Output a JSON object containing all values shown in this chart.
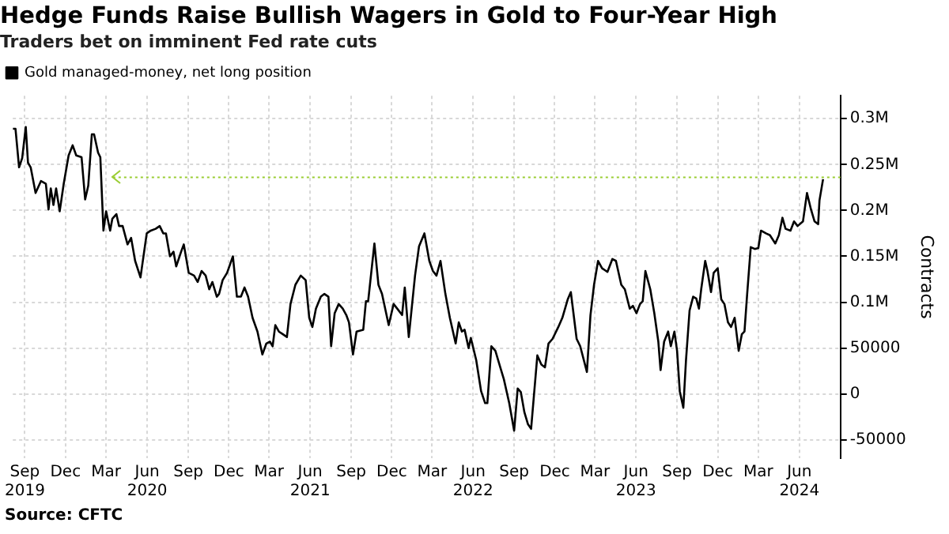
{
  "chart_data": {
    "type": "line",
    "title": "Hedge Funds Raise Bullish Wagers in Gold to Four-Year High",
    "subtitle": "Traders bet on imminent Fed rate cuts",
    "ylabel": "Contracts",
    "annotations": [
      "Source: CFTC"
    ],
    "x": [
      "2019-08-05",
      "2019-08-11",
      "2019-08-19",
      "2019-08-26",
      "2019-09-03",
      "2019-09-08",
      "2019-09-14",
      "2019-09-25",
      "2019-10-07",
      "2019-10-18",
      "2019-10-24",
      "2019-10-29",
      "2019-11-04",
      "2019-11-10",
      "2019-11-18",
      "2019-11-27",
      "2019-12-08",
      "2019-12-17",
      "2019-12-25",
      "2020-01-06",
      "2020-01-14",
      "2020-01-21",
      "2020-01-29",
      "2020-02-03",
      "2020-02-12",
      "2020-02-17",
      "2020-02-24",
      "2020-03-01",
      "2020-03-10",
      "2020-03-15",
      "2020-03-24",
      "2020-03-30",
      "2020-04-07",
      "2020-04-18",
      "2020-04-26",
      "2020-05-05",
      "2020-05-17",
      "2020-05-31",
      "2020-06-09",
      "2020-06-20",
      "2020-06-29",
      "2020-07-07",
      "2020-07-13",
      "2020-07-22",
      "2020-07-30",
      "2020-08-05",
      "2020-08-16",
      "2020-08-22",
      "2020-09-02",
      "2020-09-14",
      "2020-09-22",
      "2020-10-01",
      "2020-10-10",
      "2020-10-18",
      "2020-10-25",
      "2020-11-04",
      "2020-11-09",
      "2020-11-17",
      "2020-11-27",
      "2020-12-10",
      "2020-12-19",
      "2020-12-28",
      "2021-01-05",
      "2021-01-13",
      "2021-01-23",
      "2021-02-03",
      "2021-02-14",
      "2021-02-23",
      "2021-03-03",
      "2021-03-09",
      "2021-03-15",
      "2021-03-23",
      "2021-04-01",
      "2021-04-10",
      "2021-04-18",
      "2021-04-29",
      "2021-05-11",
      "2021-05-22",
      "2021-05-30",
      "2021-06-06",
      "2021-06-14",
      "2021-06-25",
      "2021-07-03",
      "2021-07-12",
      "2021-07-18",
      "2021-07-26",
      "2021-08-04",
      "2021-08-13",
      "2021-08-21",
      "2021-08-27",
      "2021-09-05",
      "2021-09-13",
      "2021-09-28",
      "2021-10-04",
      "2021-10-09",
      "2021-10-23",
      "2021-11-01",
      "2021-11-09",
      "2021-11-24",
      "2021-12-05",
      "2021-12-13",
      "2021-12-24",
      "2021-12-30",
      "2022-01-08",
      "2022-01-22",
      "2022-01-31",
      "2022-02-12",
      "2022-02-23",
      "2022-03-03",
      "2022-03-11",
      "2022-03-20",
      "2022-03-31",
      "2022-04-10",
      "2022-04-23",
      "2022-04-30",
      "2022-05-07",
      "2022-05-13",
      "2022-05-22",
      "2022-05-27",
      "2022-06-08",
      "2022-06-19",
      "2022-06-28",
      "2022-07-03",
      "2022-07-12",
      "2022-07-21",
      "2022-08-01",
      "2022-08-09",
      "2022-08-21",
      "2022-09-01",
      "2022-09-09",
      "2022-09-16",
      "2022-09-24",
      "2022-10-02",
      "2022-10-09",
      "2022-10-23",
      "2022-11-01",
      "2022-11-09",
      "2022-11-17",
      "2022-11-26",
      "2022-12-09",
      "2022-12-18",
      "2022-12-30",
      "2023-01-06",
      "2023-01-19",
      "2023-01-27",
      "2023-02-11",
      "2023-02-19",
      "2023-02-27",
      "2023-03-08",
      "2023-03-17",
      "2023-03-29",
      "2023-04-09",
      "2023-04-17",
      "2023-04-29",
      "2023-05-07",
      "2023-05-18",
      "2023-05-25",
      "2023-06-02",
      "2023-06-10",
      "2023-06-16",
      "2023-06-22",
      "2023-07-03",
      "2023-07-12",
      "2023-07-21",
      "2023-07-26",
      "2023-08-03",
      "2023-08-12",
      "2023-08-18",
      "2023-08-26",
      "2023-09-01",
      "2023-09-07",
      "2023-09-15",
      "2023-09-21",
      "2023-09-29",
      "2023-10-07",
      "2023-10-14",
      "2023-10-20",
      "2023-10-25",
      "2023-11-03",
      "2023-11-08",
      "2023-11-16",
      "2023-11-22",
      "2023-12-01",
      "2023-12-09",
      "2023-12-16",
      "2023-12-24",
      "2023-12-31",
      "2024-01-08",
      "2024-01-17",
      "2024-01-24",
      "2024-01-30",
      "2024-02-05",
      "2024-02-13",
      "2024-02-22",
      "2024-03-01",
      "2024-03-07",
      "2024-03-18",
      "2024-03-27",
      "2024-04-08",
      "2024-04-16",
      "2024-04-24",
      "2024-05-01",
      "2024-05-12",
      "2024-05-20",
      "2024-05-28",
      "2024-06-09",
      "2024-06-18",
      "2024-06-27",
      "2024-07-05",
      "2024-07-13",
      "2024-07-16",
      "2024-07-24"
    ],
    "series": [
      {
        "name": "Gold managed-money, net long position",
        "color": "#000000",
        "values": [
          289000,
          289000,
          247000,
          257000,
          291000,
          252000,
          247000,
          219000,
          232000,
          229000,
          201000,
          224000,
          206000,
          224000,
          199000,
          229000,
          260000,
          271000,
          260000,
          258000,
          212000,
          227000,
          283000,
          283000,
          263000,
          258000,
          178000,
          199000,
          178000,
          191000,
          196000,
          183000,
          183000,
          163000,
          170000,
          145000,
          127000,
          175000,
          178000,
          180000,
          183000,
          175000,
          175000,
          150000,
          155000,
          139000,
          155000,
          163000,
          132000,
          129000,
          122000,
          134000,
          129000,
          114000,
          122000,
          106000,
          109000,
          124000,
          132000,
          150000,
          106000,
          106000,
          116000,
          106000,
          83000,
          68000,
          43000,
          55000,
          57000,
          52000,
          75000,
          68000,
          65000,
          62000,
          98000,
          119000,
          129000,
          124000,
          83000,
          73000,
          93000,
          106000,
          109000,
          106000,
          52000,
          88000,
          98000,
          93000,
          86000,
          78000,
          43000,
          68000,
          70000,
          101000,
          101000,
          164000,
          119000,
          109000,
          75000,
          98000,
          93000,
          86000,
          116000,
          62000,
          129000,
          161000,
          175000,
          145000,
          134000,
          129000,
          145000,
          109000,
          83000,
          55000,
          78000,
          68000,
          70000,
          50000,
          61000,
          37000,
          3000,
          -10000,
          -10000,
          52000,
          47000,
          29000,
          16000,
          -10000,
          -40000,
          6000,
          2000,
          -20000,
          -33000,
          -38000,
          42000,
          32000,
          29000,
          55000,
          60000,
          73000,
          83000,
          103000,
          111000,
          60000,
          52000,
          24000,
          86000,
          119000,
          145000,
          137000,
          133000,
          147000,
          145000,
          119000,
          114000,
          93000,
          96000,
          88000,
          98000,
          101000,
          134000,
          114000,
          88000,
          57000,
          26000,
          57000,
          68000,
          52000,
          68000,
          47000,
          3000,
          -15000,
          37000,
          91000,
          106000,
          104000,
          93000,
          114000,
          145000,
          134000,
          111000,
          132000,
          137000,
          103000,
          98000,
          78000,
          73000,
          83000,
          47000,
          65000,
          68000,
          109000,
          160000,
          158000,
          159000,
          178000,
          175000,
          173000,
          164000,
          173000,
          192000,
          180000,
          178000,
          188000,
          183000,
          188000,
          219000,
          201000,
          188000,
          185000,
          211000,
          234000
        ]
      }
    ],
    "xlim": [
      "2019-08-05",
      "2024-09-01"
    ],
    "xticks": [
      {
        "value": "2019-09-01",
        "label": "Sep\n2019"
      },
      {
        "value": "2019-12-01",
        "label": "Dec"
      },
      {
        "value": "2020-03-01",
        "label": "Mar"
      },
      {
        "value": "2020-06-01",
        "label": "Jun\n2020"
      },
      {
        "value": "2020-09-01",
        "label": "Sep"
      },
      {
        "value": "2020-12-01",
        "label": "Dec"
      },
      {
        "value": "2021-03-01",
        "label": "Mar"
      },
      {
        "value": "2021-06-01",
        "label": "Jun\n2021"
      },
      {
        "value": "2021-09-01",
        "label": "Sep"
      },
      {
        "value": "2021-12-01",
        "label": "Dec"
      },
      {
        "value": "2022-03-01",
        "label": "Mar"
      },
      {
        "value": "2022-06-01",
        "label": "Jun\n2022"
      },
      {
        "value": "2022-09-01",
        "label": "Sep"
      },
      {
        "value": "2022-12-01",
        "label": "Dec"
      },
      {
        "value": "2023-03-01",
        "label": "Mar"
      },
      {
        "value": "2023-06-01",
        "label": "Jun\n2023"
      },
      {
        "value": "2023-09-01",
        "label": "Sep"
      },
      {
        "value": "2023-12-01",
        "label": "Dec"
      },
      {
        "value": "2024-03-01",
        "label": "Mar"
      },
      {
        "value": "2024-06-01",
        "label": "Jun\n2024"
      }
    ],
    "ylim": [
      -70000,
      325000
    ],
    "yticks": [
      -50000,
      0,
      50000,
      {
        "value": 100000,
        "label": "0.1M"
      },
      {
        "value": 150000,
        "label": "0.15M"
      },
      {
        "value": 200000,
        "label": "0.2M"
      },
      {
        "value": 250000,
        "label": "0.25M"
      },
      {
        "value": 300000,
        "label": "0.3M"
      }
    ],
    "ref_lines": [
      {
        "axis": "y",
        "value": 236000,
        "color": "#9acd32",
        "line_style": "dotted"
      }
    ],
    "grid": true,
    "legend": "top left",
    "line_style": "solid",
    "marker": "none"
  }
}
